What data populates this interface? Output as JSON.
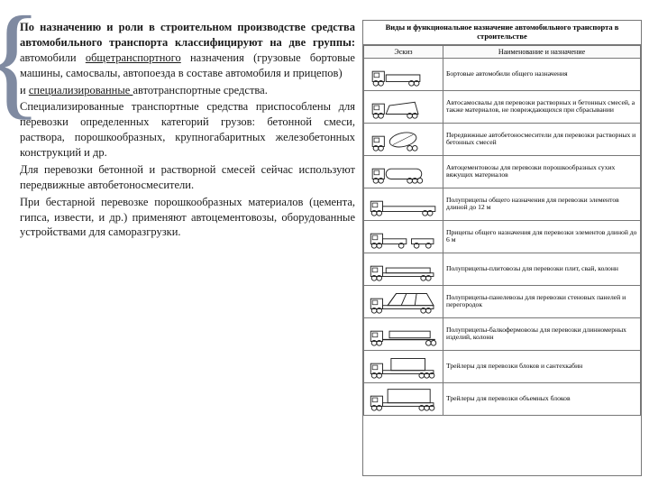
{
  "text": {
    "p1_bold": "По назначению и роли в строительном производстве средства автомобильного транспорта классифицируют на две группы:",
    "p1_rest_a": " автомобили ",
    "p1_under": "общетранспортного",
    "p1_rest_b": " назначения (грузовые бортовые машины, самосвалы, автопоезда в составе автомобиля и прицепов)",
    "p2_a": "и ",
    "p2_under": "специализированные ",
    "p2_b": "автотранспортные средства.",
    "p3": "Специализированные транспортные средства приспособлены для перевозки определенных категорий грузов: бетонной смеси, раствора, порошкообразных, крупногабаритных железобетонных конструкций и др.",
    "p4": "Для перевозки бетонной и растворной смесей сейчас используют передвижные автобетоносмесители.",
    "p5": "При бестарной перевозке порошкообразных материалов (цемента, гипса, извести, и др.) применяют автоцементовозы, оборудованные устройствами для саморазгрузки."
  },
  "table": {
    "title": "Виды и функциональное назначение автомобильного транспорта в строительстве",
    "head_sketch": "Эскиз",
    "head_desc": "Наименование и назначение",
    "rows": [
      {
        "type": "flatbed",
        "desc": "Бортовые автомобили общего назначения"
      },
      {
        "type": "dump",
        "desc": "Автосамосвалы для перевозки растворных и бетонных смесей, а также материалов, не повреждающихся при сбрасывании"
      },
      {
        "type": "mixer",
        "desc": "Передвижные автобетоносмесители для перевозки растворных и бетонных смесей"
      },
      {
        "type": "tank",
        "desc": "Автоцементовозы для перевозки порошкообразных сухих вяжущих материалов"
      },
      {
        "type": "semi12",
        "desc": "Полуприцепы общего назначения для перевозки элементов длиной до 12 м"
      },
      {
        "type": "trailer6",
        "desc": "Прицепы общего назначения для перевозки элементов длиной до 6 м"
      },
      {
        "type": "slab",
        "desc": "Полуприцепы-плитовозы для перевозки плит, свай, колонн"
      },
      {
        "type": "panel",
        "desc": "Полуприцепы-панелевозы для перевозки стеновых панелей и перегородок"
      },
      {
        "type": "beam",
        "desc": "Полуприцепы-балкофермовозы для перевозки длинномерных изделий, колонн"
      },
      {
        "type": "block",
        "desc": "Трейлеры для перевозки блоков и сантехкабин"
      },
      {
        "type": "volume",
        "desc": "Трейлеры для перевозки объемных блоков"
      }
    ]
  },
  "colors": {
    "stroke": "#222222"
  }
}
